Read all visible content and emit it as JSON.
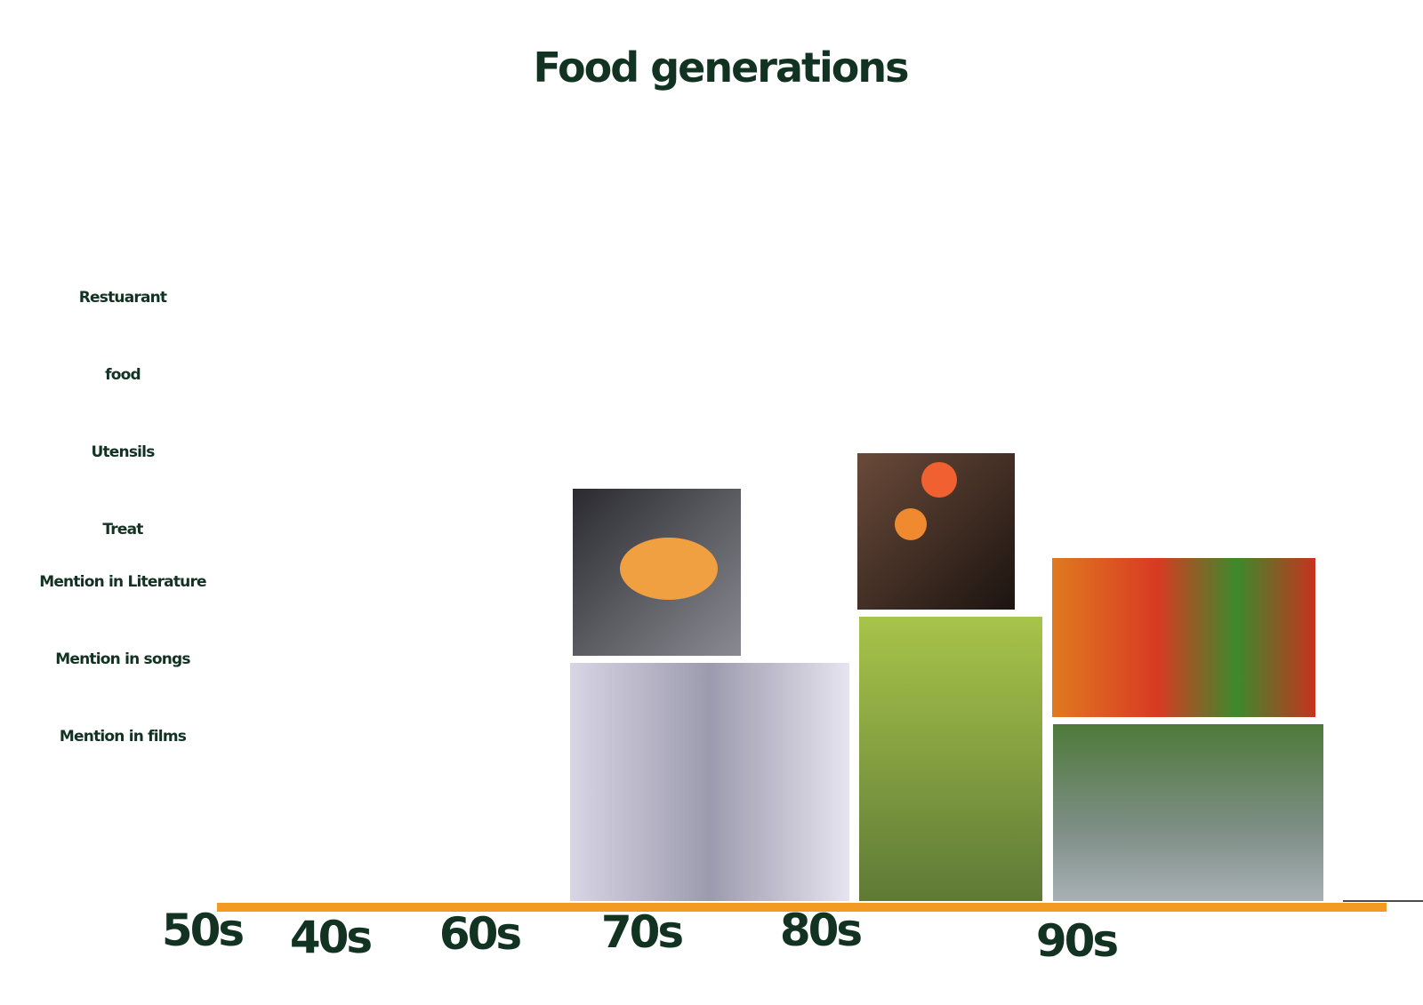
{
  "title": "Food generations",
  "rows": [
    "Restuarant",
    "food",
    "Utensils",
    "Treat",
    "Mention in Literature",
    "Mention in songs",
    "Mention in films"
  ],
  "decades": [
    "50s",
    "40s",
    "60s",
    "70s",
    "80s",
    "90s"
  ]
}
